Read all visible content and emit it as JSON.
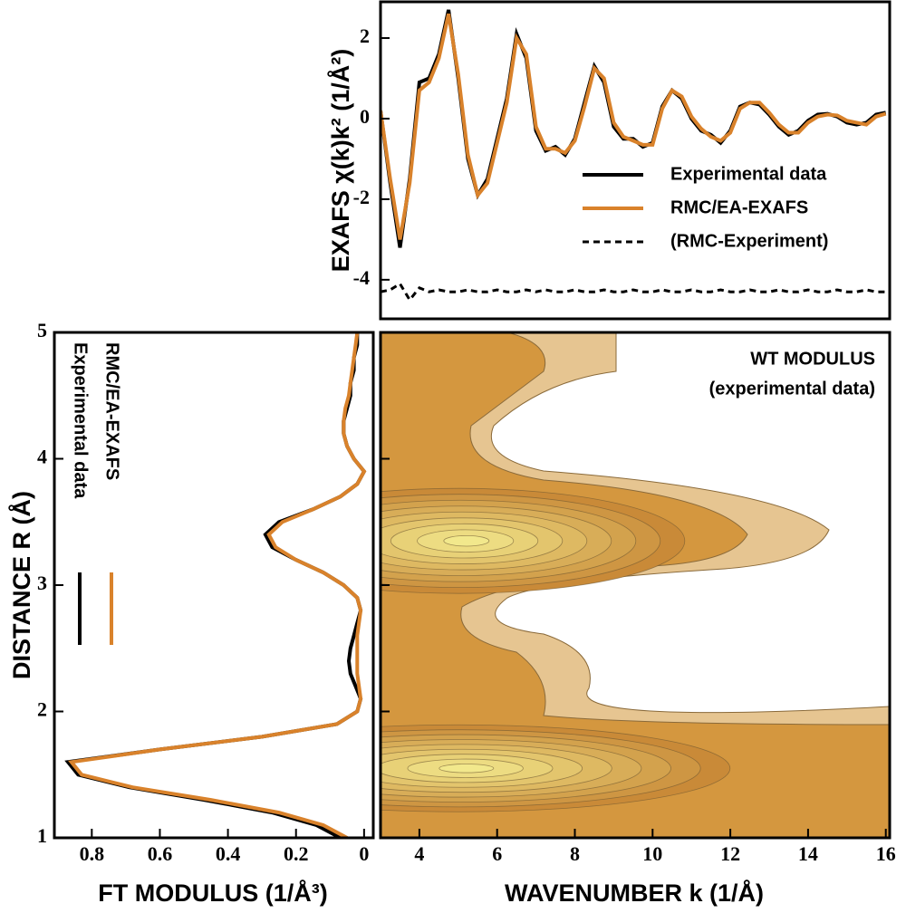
{
  "chart_data": [
    {
      "type": "line",
      "ylabel": "EXAFS χ(k)k² (1/Å²)",
      "xlim": [
        3,
        16.1
      ],
      "ylim": [
        -4.97,
        2.9
      ],
      "yticks": [
        -4,
        -2,
        0,
        2
      ],
      "legend": "upper right",
      "x": [
        3.0,
        3.25,
        3.5,
        3.75,
        4.0,
        4.25,
        4.5,
        4.75,
        5.0,
        5.25,
        5.5,
        5.75,
        6.0,
        6.25,
        6.5,
        6.75,
        7.0,
        7.25,
        7.5,
        7.75,
        8.0,
        8.25,
        8.5,
        8.75,
        9.0,
        9.25,
        9.5,
        9.75,
        10.0,
        10.25,
        10.5,
        10.75,
        11.0,
        11.25,
        11.5,
        11.75,
        12.0,
        12.25,
        12.5,
        12.75,
        13.0,
        13.25,
        13.5,
        13.75,
        14.0,
        14.25,
        14.5,
        14.75,
        15.0,
        15.25,
        15.5,
        15.75,
        16.0
      ],
      "series": [
        {
          "name": "Experimental data",
          "color": "#000000",
          "style": "solid",
          "values": [
            0.2,
            -1.6,
            -3.2,
            -1.5,
            0.9,
            1.0,
            1.6,
            2.7,
            1.0,
            -1.0,
            -1.9,
            -1.5,
            -0.5,
            0.5,
            2.1,
            1.5,
            -0.3,
            -0.8,
            -0.7,
            -0.9,
            -0.5,
            0.4,
            1.3,
            0.9,
            -0.2,
            -0.5,
            -0.5,
            -0.7,
            -0.6,
            0.3,
            0.7,
            0.5,
            0.0,
            -0.3,
            -0.4,
            -0.6,
            -0.3,
            0.3,
            0.4,
            0.35,
            0.1,
            -0.2,
            -0.4,
            -0.3,
            -0.05,
            0.1,
            0.12,
            0.05,
            -0.1,
            -0.15,
            -0.1,
            0.1,
            0.15
          ]
        },
        {
          "name": "RMC/EA-EXAFS",
          "color": "#d9822b",
          "style": "solid",
          "values": [
            0.2,
            -1.5,
            -3.0,
            -1.6,
            0.7,
            0.9,
            1.5,
            2.6,
            1.1,
            -0.9,
            -1.9,
            -1.6,
            -0.6,
            0.4,
            2.0,
            1.6,
            -0.2,
            -0.75,
            -0.75,
            -0.85,
            -0.55,
            0.3,
            1.25,
            1.0,
            -0.1,
            -0.45,
            -0.55,
            -0.65,
            -0.65,
            0.25,
            0.7,
            0.55,
            0.05,
            -0.25,
            -0.45,
            -0.55,
            -0.35,
            0.25,
            0.4,
            0.4,
            0.15,
            -0.15,
            -0.35,
            -0.35,
            -0.1,
            0.05,
            0.1,
            0.08,
            -0.05,
            -0.1,
            -0.15,
            0.05,
            0.12
          ]
        },
        {
          "name": "(RMC-Experiment)",
          "color": "#000000",
          "style": "dashed",
          "values": [
            -4.3,
            -4.25,
            -4.1,
            -4.5,
            -4.2,
            -4.3,
            -4.25,
            -4.3,
            -4.3,
            -4.25,
            -4.3,
            -4.3,
            -4.25,
            -4.3,
            -4.3,
            -4.25,
            -4.3,
            -4.25,
            -4.3,
            -4.3,
            -4.25,
            -4.3,
            -4.3,
            -4.25,
            -4.3,
            -4.3,
            -4.25,
            -4.3,
            -4.3,
            -4.25,
            -4.3,
            -4.3,
            -4.25,
            -4.3,
            -4.3,
            -4.25,
            -4.3,
            -4.3,
            -4.25,
            -4.3,
            -4.3,
            -4.25,
            -4.3,
            -4.3,
            -4.25,
            -4.3,
            -4.3,
            -4.25,
            -4.3,
            -4.3,
            -4.25,
            -4.3,
            -4.3
          ]
        }
      ]
    },
    {
      "type": "line-vertical",
      "xlabel": "FT MODULUS (1/Å³)",
      "ylabel": "DISTANCE R (Å)",
      "xlim": [
        0.91,
        -0.027
      ],
      "xticks": [
        0.8,
        0.6,
        0.4,
        0.2,
        0
      ],
      "ylim": [
        1,
        5
      ],
      "yticks": [
        1,
        2,
        3,
        4,
        5
      ],
      "x": [
        1.0,
        1.1,
        1.2,
        1.3,
        1.4,
        1.5,
        1.6,
        1.7,
        1.8,
        1.9,
        2.0,
        2.1,
        2.2,
        2.3,
        2.4,
        2.5,
        2.6,
        2.7,
        2.8,
        2.9,
        3.0,
        3.1,
        3.2,
        3.3,
        3.4,
        3.5,
        3.6,
        3.7,
        3.8,
        3.9,
        4.0,
        4.1,
        4.2,
        4.3,
        4.4,
        4.5,
        4.6,
        4.7,
        4.8,
        4.9,
        5.0
      ],
      "series": [
        {
          "name": "Experimental data",
          "color": "#000000",
          "values": [
            0.07,
            0.14,
            0.27,
            0.47,
            0.69,
            0.84,
            0.87,
            0.6,
            0.3,
            0.08,
            0.02,
            0.01,
            0.025,
            0.04,
            0.045,
            0.04,
            0.03,
            0.02,
            0.01,
            0.02,
            0.06,
            0.12,
            0.2,
            0.27,
            0.29,
            0.25,
            0.15,
            0.07,
            0.02,
            0.0,
            0.03,
            0.05,
            0.06,
            0.06,
            0.05,
            0.04,
            0.04,
            0.03,
            0.03,
            0.02,
            0.02
          ]
        },
        {
          "name": "RMC/EA-EXAFS",
          "color": "#d9822b",
          "values": [
            0.05,
            0.12,
            0.25,
            0.45,
            0.68,
            0.83,
            0.86,
            0.6,
            0.3,
            0.08,
            0.02,
            0.01,
            0.015,
            0.02,
            0.02,
            0.02,
            0.02,
            0.015,
            0.01,
            0.02,
            0.06,
            0.12,
            0.2,
            0.26,
            0.28,
            0.24,
            0.15,
            0.07,
            0.02,
            0.0,
            0.03,
            0.05,
            0.06,
            0.06,
            0.055,
            0.045,
            0.04,
            0.035,
            0.03,
            0.025,
            0.02
          ]
        }
      ]
    },
    {
      "type": "contour",
      "title": "WT MODULUS",
      "subtitle": "(experimental data)",
      "xlabel": "WAVENUMBER k (1/Å)",
      "xlim": [
        3,
        16.1
      ],
      "xticks": [
        4,
        6,
        8,
        10,
        12,
        14,
        16
      ],
      "ylim": [
        1,
        5
      ],
      "peaks": [
        {
          "k": 5.0,
          "R": 1.55
        },
        {
          "k": 5.0,
          "R": 3.35
        }
      ]
    }
  ]
}
